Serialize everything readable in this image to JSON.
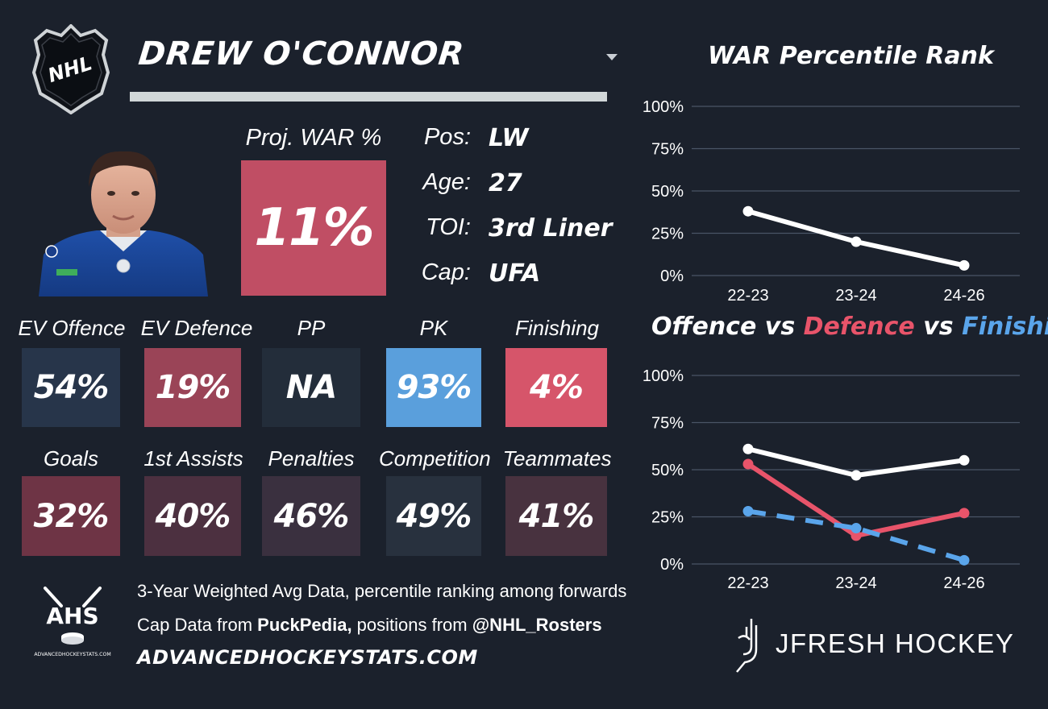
{
  "header": {
    "player_name": "DREW O'CONNOR",
    "league_logo_text": "NHL"
  },
  "projection": {
    "label": "Proj. WAR %",
    "value": "11%",
    "color": "#c04e64"
  },
  "info": [
    {
      "label": "Pos:",
      "value": "LW"
    },
    {
      "label": "Age:",
      "value": "27"
    },
    {
      "label": "TOI:",
      "value": "3rd Liner"
    },
    {
      "label": "Cap:",
      "value": "UFA"
    }
  ],
  "stats_row1": [
    {
      "label": "EV Offence",
      "value": "54%",
      "color": "#27354a"
    },
    {
      "label": "EV Defence",
      "value": "19%",
      "color": "#9a4457"
    },
    {
      "label": "PP",
      "value": "NA",
      "color": "#232d3a"
    },
    {
      "label": "PK",
      "value": "93%",
      "color": "#5a9fdc"
    },
    {
      "label": "Finishing",
      "value": "4%",
      "color": "#d6556a"
    }
  ],
  "stats_row2": [
    {
      "label": "Goals",
      "value": "32%",
      "color": "#6e3445"
    },
    {
      "label": "1st Assists",
      "value": "40%",
      "color": "#4c3040"
    },
    {
      "label": "Penalties",
      "value": "46%",
      "color": "#3a303f"
    },
    {
      "label": "Competition",
      "value": "49%",
      "color": "#28313e"
    },
    {
      "label": "Teammates",
      "value": "41%",
      "color": "#48323f"
    }
  ],
  "footer": {
    "ahs_logo_text": "AHS",
    "ahs_logo_subtext": "ADVANCEDHOCKEYSTATS.COM",
    "line1": "3-Year Weighted Avg Data, percentile ranking among forwards",
    "line2_prefix": "Cap Data from ",
    "line2_bold1": "PuckPedia,",
    "line2_mid": " positions from ",
    "line2_bold2": "@NHL_Rosters",
    "website": "ADVANCEDHOCKEYSTATS.COM",
    "brand": "JFRESH HOCKEY"
  },
  "chart_data": [
    {
      "type": "line",
      "title": "WAR Percentile Rank",
      "categories": [
        "22-23",
        "23-24",
        "24-26"
      ],
      "series": [
        {
          "values": [
            38,
            20,
            6
          ],
          "color": "#ffffff",
          "dashed": false
        }
      ],
      "ylim": [
        0,
        100
      ],
      "yticks": [
        "0%",
        "25%",
        "50%",
        "75%",
        "100%"
      ],
      "grid": true
    },
    {
      "type": "line",
      "title_parts": [
        {
          "text": "Offence",
          "color": "#ffffff"
        },
        {
          "text": " vs ",
          "color": "#ffffff"
        },
        {
          "text": "Defence",
          "color": "#e8546a"
        },
        {
          "text": " vs ",
          "color": "#ffffff"
        },
        {
          "text": "Finishing",
          "color": "#5aa5eb"
        }
      ],
      "categories": [
        "22-23",
        "23-24",
        "24-26"
      ],
      "series": [
        {
          "name": "Offence",
          "values": [
            61,
            47,
            55
          ],
          "color": "#ffffff",
          "dashed": false
        },
        {
          "name": "Defence",
          "values": [
            53,
            15,
            27
          ],
          "color": "#e8546a",
          "dashed": false
        },
        {
          "name": "Finishing",
          "values": [
            28,
            19,
            2
          ],
          "color": "#5aa5eb",
          "dashed": true
        }
      ],
      "ylim": [
        0,
        100
      ],
      "yticks": [
        "0%",
        "25%",
        "50%",
        "75%",
        "100%"
      ],
      "grid": true
    }
  ]
}
